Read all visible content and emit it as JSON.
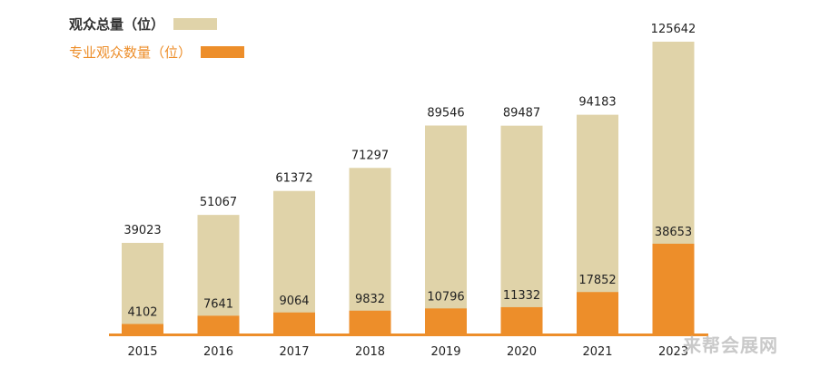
{
  "chart_data": {
    "type": "bar",
    "categories": [
      "2015",
      "2016",
      "2017",
      "2018",
      "2019",
      "2020",
      "2021",
      "2023"
    ],
    "series": [
      {
        "name": "观众总量（位）",
        "values": [
          39023,
          51067,
          61372,
          71297,
          89546,
          89487,
          94183,
          125642
        ],
        "color": "#e0d3a9"
      },
      {
        "name": "专业观众数量（位）",
        "values": [
          4102,
          7641,
          9064,
          9832,
          10796,
          11332,
          17852,
          38653
        ],
        "color": "#ed8e2a"
      }
    ],
    "ylim": [
      0,
      125642
    ],
    "grid": false,
    "legend_position": "top-left",
    "baseline_color": "#ed8e2a"
  },
  "watermark": "来帮会展网"
}
